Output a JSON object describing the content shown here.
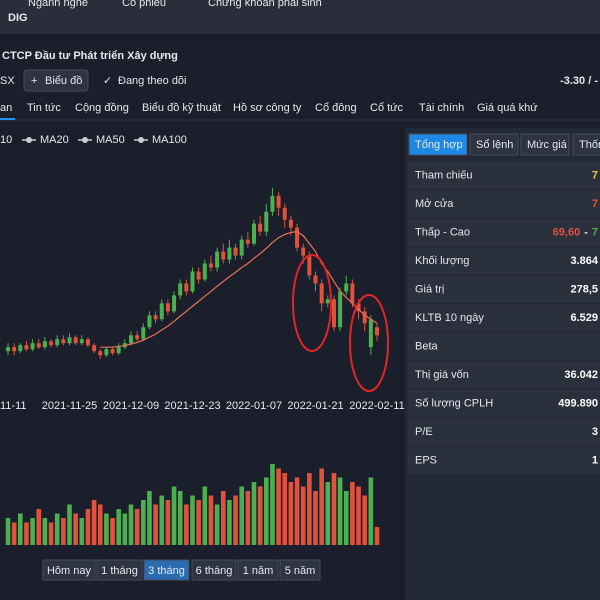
{
  "top_tabs": [
    "Ngành nghề",
    "Cổ phiếu",
    "Chứng khoán phái sinh"
  ],
  "header": {
    "ticker": "DIG",
    "company": "CTCP Đầu tư Phát triển Xây dựng",
    "exchange": "SX",
    "chart_button": "Biểu đồ",
    "follow_button": "Đang theo dõi",
    "change": "-3.30 / -"
  },
  "nav_tabs": [
    "an",
    "Tin tức",
    "Cộng đồng",
    "Biểu đồ kỹ thuật",
    "Hồ sơ công ty",
    "Cổ đông",
    "Cổ tức",
    "Tài chính",
    "Giá quá khứ"
  ],
  "chart_data": {
    "type": "candlestick",
    "categories": [
      "11-11",
      null,
      null,
      null,
      null,
      null,
      null,
      null,
      null,
      null,
      "2021-11-25",
      null,
      null,
      null,
      null,
      null,
      null,
      null,
      null,
      null,
      "2021-12-09",
      null,
      null,
      null,
      null,
      null,
      null,
      null,
      null,
      null,
      "2021-12-23",
      null,
      null,
      null,
      null,
      null,
      null,
      null,
      null,
      null,
      "2022-01-07",
      null,
      null,
      null,
      null,
      null,
      null,
      null,
      null,
      null,
      "2022-01-21",
      null,
      null,
      null,
      null,
      null,
      null,
      null,
      null,
      null,
      "2022-02-11"
    ],
    "open": [
      67,
      68,
      67,
      68.5,
      67.5,
      69,
      68,
      69.5,
      68.5,
      70,
      69,
      70.5,
      69,
      70,
      68.5,
      67,
      66,
      67.5,
      66.5,
      68,
      69,
      71,
      70,
      73,
      76,
      75,
      79,
      77,
      81,
      84,
      82,
      87,
      85,
      89,
      88,
      92,
      90,
      93,
      91,
      95,
      94,
      99,
      97,
      102,
      106,
      103,
      100,
      98,
      93,
      91,
      86,
      84,
      79,
      80,
      73,
      82,
      84,
      79,
      77,
      68,
      73
    ],
    "close": [
      68,
      67,
      68.5,
      67.5,
      69,
      68,
      69.5,
      68.5,
      70,
      69,
      70.5,
      69,
      70,
      68.5,
      67,
      66,
      67.5,
      66.5,
      68,
      69,
      71,
      70,
      73,
      76,
      75,
      79,
      77,
      81,
      84,
      82,
      87,
      85,
      89,
      88,
      92,
      90,
      93,
      91,
      95,
      94,
      99,
      97,
      102,
      106,
      103,
      100,
      98,
      93,
      91,
      86,
      84,
      79,
      80,
      73,
      82,
      84,
      79,
      77,
      74,
      75,
      71
    ],
    "high": [
      69,
      69,
      69,
      69.5,
      70,
      70,
      70.5,
      70,
      71,
      71,
      71.5,
      71,
      71,
      70.5,
      69,
      67.5,
      68,
      68,
      69,
      70,
      72,
      72,
      74,
      77,
      77,
      80,
      80,
      82,
      85,
      85,
      88,
      88,
      90,
      91,
      93,
      94,
      95,
      94,
      96,
      97,
      100,
      101,
      104,
      108,
      107,
      104,
      101,
      99,
      94,
      92,
      87,
      85,
      81,
      81,
      83,
      86,
      85,
      80,
      78,
      76,
      74
    ],
    "low": [
      66,
      66,
      66.5,
      67,
      67,
      67.5,
      67.5,
      68,
      68,
      68.5,
      68.5,
      68.5,
      68.5,
      68,
      66.5,
      65,
      65.5,
      66,
      66,
      67.5,
      68.5,
      69.5,
      69.5,
      72.5,
      74,
      74.5,
      76,
      76.5,
      80,
      81,
      81.5,
      84,
      84.5,
      87,
      87,
      89,
      89,
      90,
      90,
      93,
      93.5,
      96,
      96,
      101,
      101,
      98,
      96,
      92,
      89,
      85,
      82,
      77,
      78,
      72,
      72,
      81,
      78,
      75,
      72,
      66,
      69.6
    ],
    "ylim": [
      56,
      120
    ],
    "up_color": "#4caf50",
    "down_color": "#e0523c",
    "series": [
      {
        "name": "10"
      },
      {
        "name": "MA20",
        "color": "#e8705e",
        "values": [
          null,
          null,
          null,
          null,
          null,
          null,
          null,
          null,
          null,
          null,
          null,
          null,
          null,
          null,
          null,
          68,
          68,
          68,
          68.2,
          68.4,
          68.8,
          69.2,
          69.8,
          70.5,
          71.3,
          72.3,
          73.3,
          74.5,
          75.8,
          77,
          78.3,
          79.5,
          80.8,
          82,
          83.3,
          84.5,
          85.7,
          86.8,
          88,
          89,
          90.3,
          91.5,
          92.8,
          94.3,
          95.5,
          96.3,
          96.8,
          97,
          96,
          94,
          92,
          89,
          87,
          84.5,
          82,
          80.5,
          79,
          77.5,
          76,
          75,
          74
        ]
      },
      {
        "name": "MA50"
      },
      {
        "name": "MA100"
      }
    ],
    "volume": {
      "values": [
        6,
        5,
        7,
        5,
        6,
        8,
        6,
        5,
        7,
        6,
        9,
        7,
        6,
        8,
        10,
        9,
        7,
        6,
        8,
        7,
        9,
        8,
        10,
        12,
        9,
        11,
        10,
        13,
        12,
        9,
        11,
        10,
        13,
        11,
        9,
        12,
        10,
        11,
        13,
        12,
        14,
        13,
        15,
        18,
        17,
        16,
        14,
        15,
        13,
        16,
        12,
        17,
        14,
        16,
        15,
        12,
        14,
        13,
        11,
        15,
        4
      ],
      "ylim": [
        0,
        20
      ]
    }
  },
  "range_buttons": [
    "Hôm nay",
    "1 tháng",
    "3 tháng",
    "6 tháng",
    "1 năm",
    "5 năm"
  ],
  "active_range": 2,
  "side_panel": {
    "tabs": [
      "Tổng hợp",
      "Sổ lệnh",
      "Mức giá",
      "Thốn"
    ],
    "active_tab": 0,
    "rows": [
      {
        "label": "Tham chiếu",
        "value": [
          {
            "text": "7",
            "color": "#e8c547"
          }
        ]
      },
      {
        "label": "Mở cửa",
        "value": [
          {
            "text": "7",
            "color": "#e0523c"
          }
        ]
      },
      {
        "label": "Thấp - Cao",
        "value": [
          {
            "text": "69,60",
            "color": "#e0523c"
          },
          {
            "text": "-",
            "color": "#e6e8ee"
          },
          {
            "text": "7",
            "color": "#4caf50"
          }
        ]
      },
      {
        "label": "Khối lượng",
        "value": [
          {
            "text": "3.864",
            "color": "#ffffff"
          }
        ]
      },
      {
        "label": "Giá trị",
        "value": [
          {
            "text": "278,5",
            "color": "#ffffff"
          }
        ]
      },
      {
        "label": "KLTB 10 ngày",
        "value": [
          {
            "text": "6.529",
            "color": "#ffffff"
          }
        ]
      },
      {
        "label": "Beta"
      },
      {
        "label": "Thị giá vốn",
        "value": [
          {
            "text": "36.042",
            "color": "#ffffff"
          }
        ]
      },
      {
        "label": "Số lượng CPLH",
        "value": [
          {
            "text": "499.890",
            "color": "#ffffff"
          }
        ]
      },
      {
        "label": "P/E",
        "value": [
          {
            "text": "3",
            "color": "#ffffff"
          }
        ]
      },
      {
        "label": "EPS",
        "value": [
          {
            "text": "1",
            "color": "#ffffff"
          }
        ]
      }
    ]
  }
}
